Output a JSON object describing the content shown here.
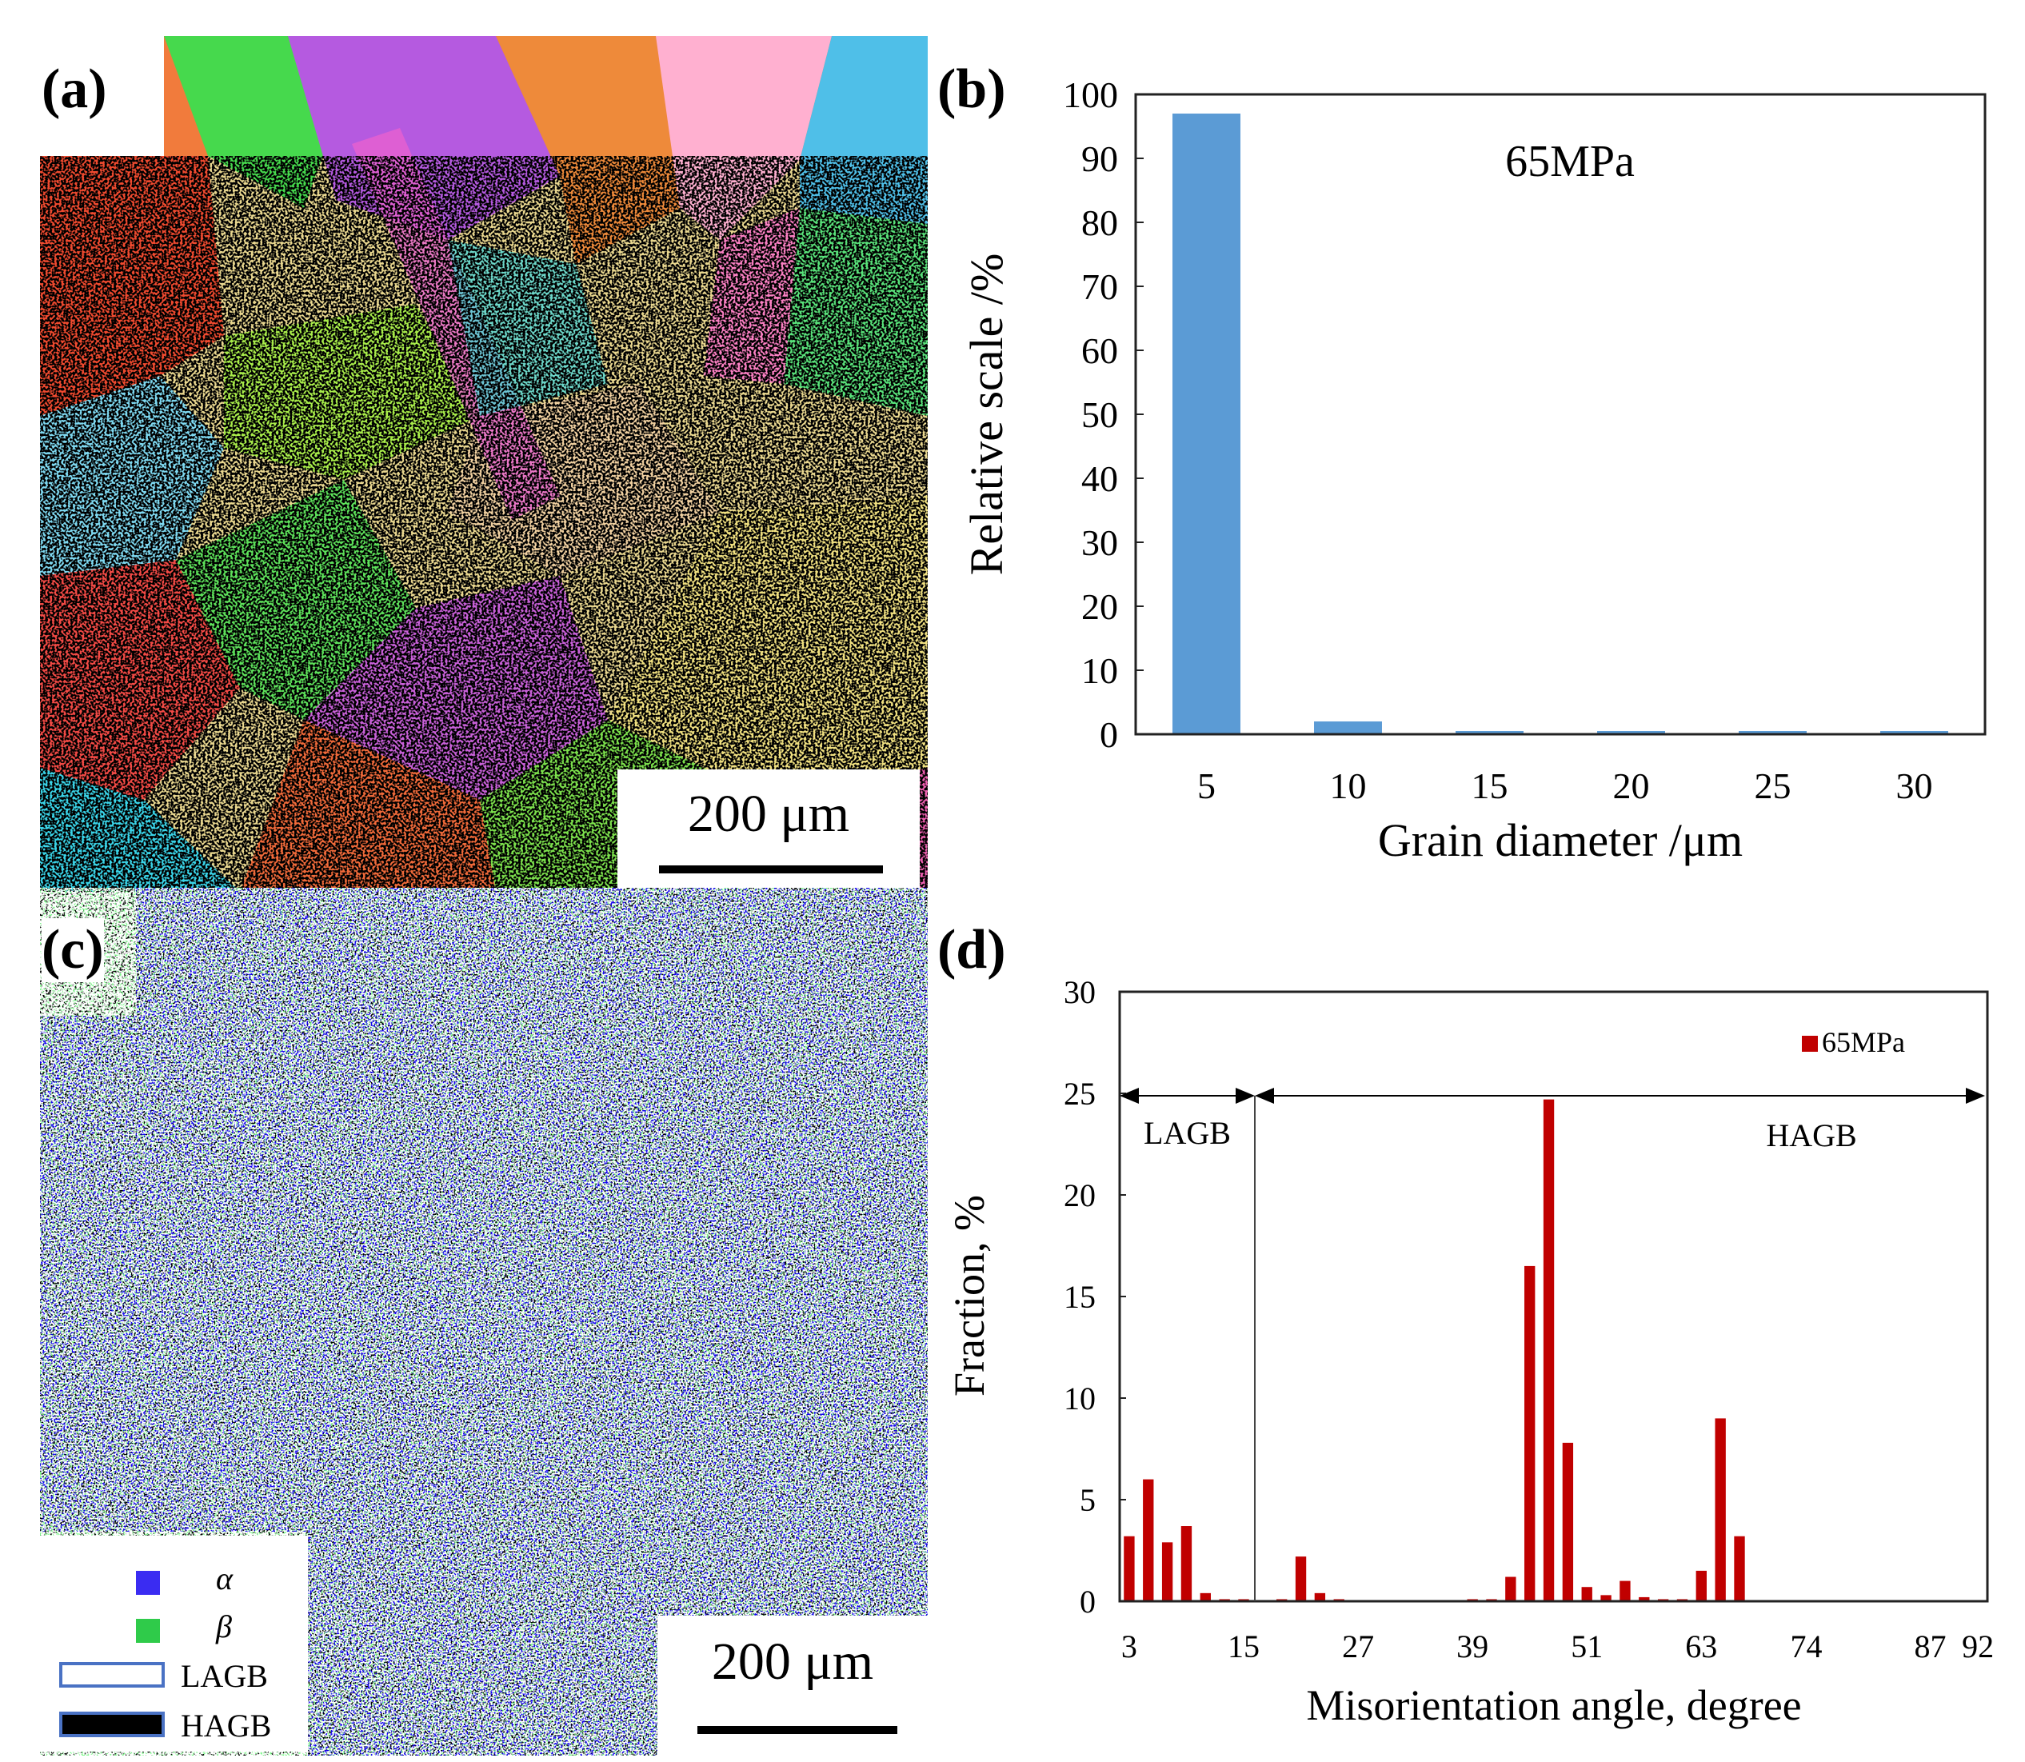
{
  "panels": {
    "a": {
      "label": "(a)",
      "scale_bar": "200 μm"
    },
    "b": {
      "label": "(b)"
    },
    "c": {
      "label": "(c)",
      "scale_bar": "200 μm",
      "legend": [
        {
          "symbol": "α",
          "color": "#3a2cf2",
          "kind": "fill"
        },
        {
          "symbol": "β",
          "color": "#2fcb4a",
          "kind": "fill"
        },
        {
          "symbol": "LAGB",
          "color": "#ffffff",
          "kind": "outline"
        },
        {
          "symbol": "HAGB",
          "color": "#000000",
          "kind": "outline"
        }
      ]
    },
    "d": {
      "label": "(d)"
    }
  },
  "colors": {
    "bar_b": "#5b9bd5",
    "bar_d": "#c00000",
    "ebsd_alpha": "#1400f5",
    "ebsd_beta": "#2ee83a"
  },
  "chart_data": [
    {
      "id": "b",
      "type": "bar",
      "annotation": "65MPa",
      "categories": [
        "5",
        "10",
        "15",
        "20",
        "25",
        "30"
      ],
      "values": [
        97,
        2,
        0.5,
        0.5,
        0.5,
        0.5
      ],
      "xlabel": "Grain diameter /μm",
      "ylabel": "Relative scale /%",
      "ylim": [
        0,
        100
      ],
      "yticks": [
        0,
        10,
        20,
        30,
        40,
        50,
        60,
        70,
        80,
        90,
        100
      ],
      "grid": false
    },
    {
      "id": "d",
      "type": "bar",
      "legend": "65MPa",
      "regions": [
        {
          "name": "LAGB",
          "from": 3,
          "to": 15
        },
        {
          "name": "HAGB",
          "from": 15,
          "to": 92
        }
      ],
      "x": [
        3,
        5,
        7,
        9,
        11,
        13,
        15,
        17,
        19,
        21,
        23,
        25,
        27,
        29,
        31,
        33,
        35,
        37,
        39,
        41,
        43,
        45,
        47,
        49,
        51,
        53,
        55,
        57,
        59,
        61,
        63,
        65,
        67,
        69,
        71,
        73,
        75,
        77,
        79,
        81,
        83,
        85,
        87,
        89
      ],
      "values": [
        3.2,
        6.0,
        2.9,
        3.7,
        0.4,
        0.1,
        0.1,
        0,
        0.1,
        2.2,
        0.4,
        0.1,
        0,
        0,
        0,
        0,
        0,
        0,
        0.1,
        0.1,
        1.2,
        16.5,
        24.7,
        7.8,
        0.7,
        0.3,
        1.0,
        0.2,
        0.1,
        0.1,
        1.5,
        9.0,
        3.2,
        0,
        0,
        0,
        0,
        0,
        0,
        0,
        0,
        0,
        0,
        0
      ],
      "xticks": [
        "3",
        "15",
        "27",
        "39",
        "51",
        "63",
        "74",
        "87",
        "92"
      ],
      "xlabel": "Misorientation angle, degree",
      "ylabel": "Fraction, %",
      "ylim": [
        0,
        30
      ],
      "yticks": [
        0,
        5,
        10,
        15,
        20,
        25,
        30
      ],
      "grid": false
    }
  ]
}
